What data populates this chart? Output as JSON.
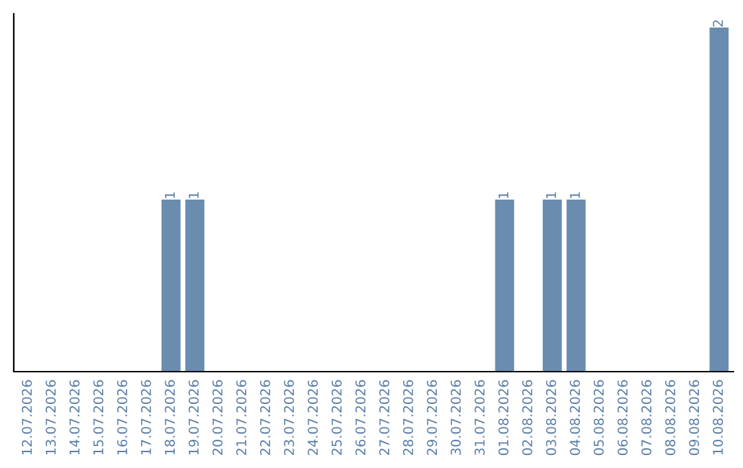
{
  "chart_data": {
    "type": "bar",
    "categories": [
      "12.07.2026",
      "13.07.2026",
      "14.07.2026",
      "15.07.2026",
      "16.07.2026",
      "17.07.2026",
      "18.07.2026",
      "19.07.2026",
      "20.07.2026",
      "21.07.2026",
      "22.07.2026",
      "23.07.2026",
      "24.07.2026",
      "25.07.2026",
      "26.07.2026",
      "27.07.2026",
      "28.07.2026",
      "29.07.2026",
      "30.07.2026",
      "31.07.2026",
      "01.08.2026",
      "02.08.2026",
      "03.08.2026",
      "04.08.2026",
      "05.08.2026",
      "06.08.2026",
      "07.08.2026",
      "08.08.2026",
      "09.08.2026",
      "10.08.2026"
    ],
    "values": [
      0,
      0,
      0,
      0,
      0,
      0,
      1,
      1,
      0,
      0,
      0,
      0,
      0,
      0,
      0,
      0,
      0,
      0,
      0,
      0,
      1,
      0,
      1,
      1,
      0,
      0,
      0,
      0,
      0,
      2
    ],
    "value_labels": [
      null,
      null,
      null,
      null,
      null,
      null,
      "1",
      "1",
      null,
      null,
      null,
      null,
      null,
      null,
      null,
      null,
      null,
      null,
      null,
      null,
      "1",
      null,
      "1",
      "1",
      null,
      null,
      null,
      null,
      null,
      "2"
    ],
    "color": "#6a8caf",
    "tick_labels": "x",
    "grid": false
  }
}
